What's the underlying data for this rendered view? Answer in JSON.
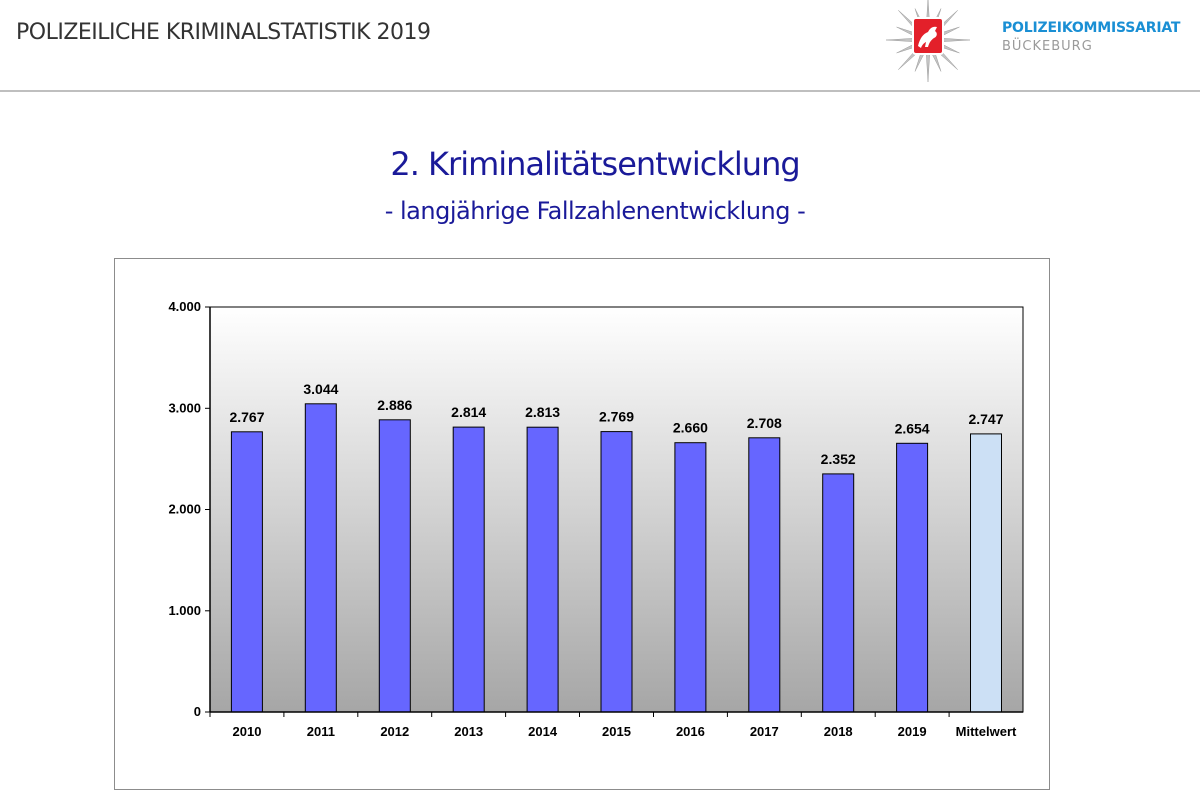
{
  "header": {
    "title": "POLIZEILICHE  KRIMINALSTATISTIK 2019",
    "org_name": "POLIZEIKOMMISSARIAT",
    "org_sub": "BÜCKEBURG",
    "logo_icon": "police-star-badge-horse-icon"
  },
  "slide": {
    "title": "2. Kriminalitätsentwicklung",
    "subtitle": "- langjährige Fallzahlenentwicklung -"
  },
  "colors": {
    "title_blue": "#1a1a99",
    "org_blue": "#1a8fd4",
    "org_gray": "#9a9a9a",
    "bar": "#6666ff",
    "bar_highlight": "#cce0f5",
    "bar_stroke": "#000000",
    "plot_bg_top": "#ffffff",
    "plot_bg_bottom": "#a6a6a6"
  },
  "chart_data": {
    "type": "bar",
    "categories": [
      "2010",
      "2011",
      "2012",
      "2013",
      "2014",
      "2015",
      "2016",
      "2017",
      "2018",
      "2019",
      "Mittelwert"
    ],
    "values": [
      2767,
      3044,
      2886,
      2814,
      2813,
      2769,
      2660,
      2708,
      2352,
      2654,
      2747
    ],
    "value_labels": [
      "2.767",
      "3.044",
      "2.886",
      "2.814",
      "2.813",
      "2.769",
      "2.660",
      "2.708",
      "2.352",
      "2.654",
      "2.747"
    ],
    "highlight_category": "Mittelwert",
    "ylim": [
      0,
      4000
    ],
    "yticks": [
      0,
      1000,
      2000,
      3000,
      4000
    ],
    "ytick_labels": [
      "0",
      "1.000",
      "2.000",
      "3.000",
      "4.000"
    ],
    "grid": false,
    "legend": "none",
    "title": "",
    "xlabel": "",
    "ylabel": ""
  }
}
